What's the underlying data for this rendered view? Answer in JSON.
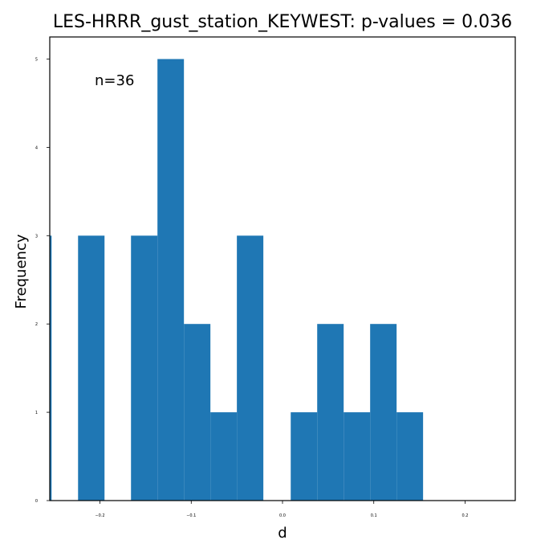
{
  "chart_data": {
    "type": "bar",
    "title": "LES-HRRR_gust_station_KEYWEST: p-values = 0.036",
    "xlabel": "d",
    "ylabel": "Frequency",
    "annotation": "n=36",
    "xlim": [
      -0.255,
      0.255
    ],
    "ylim": [
      0,
      5.25
    ],
    "x_ticks": [
      -0.2,
      -0.1,
      0.0,
      0.1,
      0.2
    ],
    "x_tick_labels": [
      "−0.2",
      "−0.1",
      "0.0",
      "0.1",
      "0.2"
    ],
    "y_ticks": [
      0,
      1,
      2,
      3,
      4,
      5
    ],
    "y_tick_labels": [
      "0",
      "1",
      "2",
      "3",
      "4",
      "5"
    ],
    "bar_color": "#1f77b4",
    "bins": [
      {
        "x0": -0.26,
        "x1": -0.253,
        "value": 3
      },
      {
        "x0": -0.224,
        "x1": -0.195,
        "value": 3
      },
      {
        "x0": -0.166,
        "x1": -0.137,
        "value": 3
      },
      {
        "x0": -0.137,
        "x1": -0.108,
        "value": 5
      },
      {
        "x0": -0.108,
        "x1": -0.079,
        "value": 2
      },
      {
        "x0": -0.079,
        "x1": -0.05,
        "value": 1
      },
      {
        "x0": -0.05,
        "x1": -0.021,
        "value": 3
      },
      {
        "x0": 0.009,
        "x1": 0.038,
        "value": 1
      },
      {
        "x0": 0.038,
        "x1": 0.067,
        "value": 2
      },
      {
        "x0": 0.067,
        "x1": 0.096,
        "value": 1
      },
      {
        "x0": 0.096,
        "x1": 0.125,
        "value": 2
      },
      {
        "x0": 0.125,
        "x1": 0.154,
        "value": 1
      }
    ],
    "grid": false,
    "legend": "none"
  }
}
